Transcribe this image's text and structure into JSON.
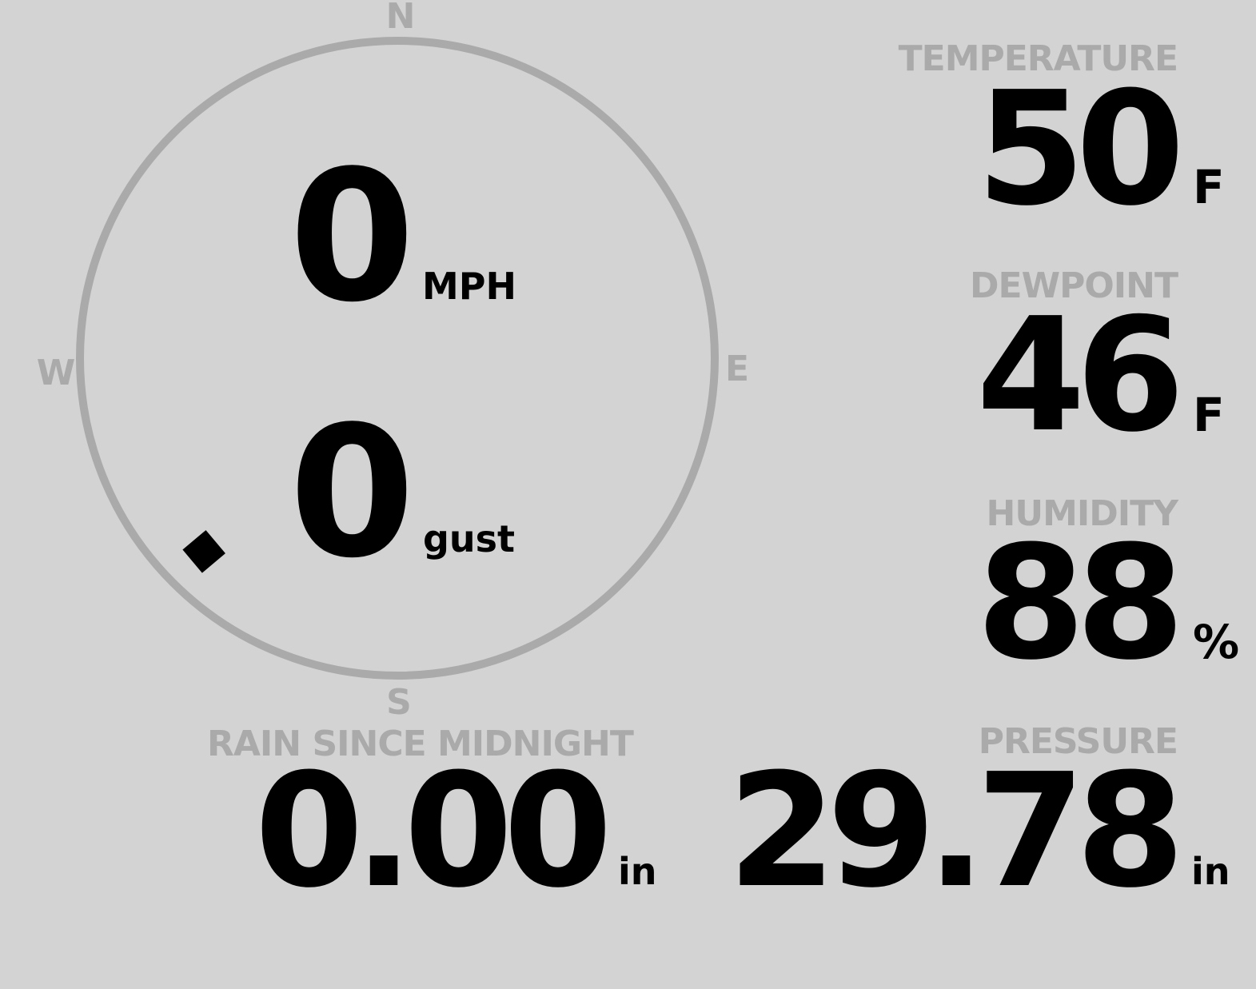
{
  "compass": {
    "north": "N",
    "east": "E",
    "south": "S",
    "west": "W",
    "direction_degrees": 225,
    "ring_color": "#aaaaaa"
  },
  "wind": {
    "speed": "0",
    "speed_unit": "MPH",
    "gust": "0",
    "gust_unit": "gust"
  },
  "temperature": {
    "label": "TEMPERATURE",
    "value": "50",
    "unit": "F"
  },
  "dewpoint": {
    "label": "DEWPOINT",
    "value": "46",
    "unit": "F"
  },
  "humidity": {
    "label": "HUMIDITY",
    "value": "88",
    "unit": "%"
  },
  "pressure": {
    "label": "PRESSURE",
    "value": "29.78",
    "unit": "in"
  },
  "rain": {
    "label": "RAIN SINCE MIDNIGHT",
    "value": "0.00",
    "unit": "in"
  },
  "colors": {
    "background": "#d3d3d3",
    "label": "#aaaaaa",
    "value": "#000000"
  }
}
